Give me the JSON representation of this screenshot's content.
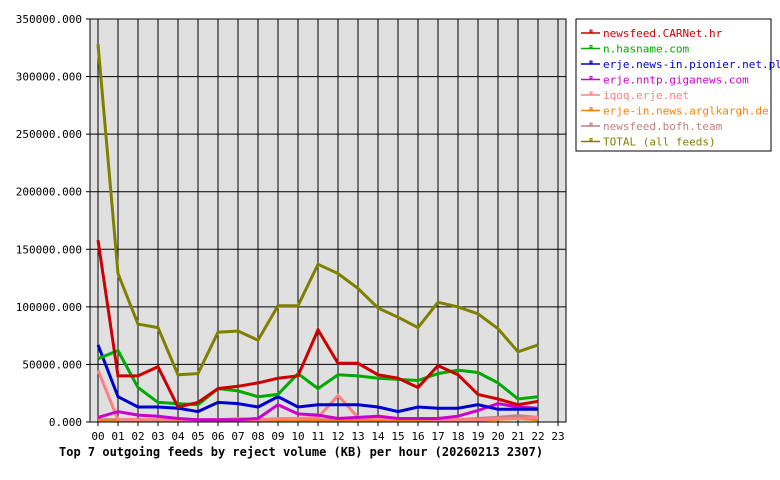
{
  "chart_data": {
    "type": "line",
    "title": "Top 7 outgoing feeds by reject volume (KB) per hour (20260213 2307)",
    "xlabel": "",
    "ylabel": "",
    "ylim": [
      0,
      350000
    ],
    "yticks": [
      "0.000",
      "50000.000",
      "100000.000",
      "150000.000",
      "200000.000",
      "250000.000",
      "300000.000",
      "350000.000"
    ],
    "categories": [
      "00",
      "01",
      "02",
      "03",
      "04",
      "05",
      "06",
      "07",
      "08",
      "09",
      "10",
      "11",
      "12",
      "13",
      "14",
      "15",
      "16",
      "17",
      "18",
      "19",
      "20",
      "21",
      "22",
      "23"
    ],
    "grid": true,
    "legend_position": "right",
    "series": [
      {
        "name": "newsfeed.CARNet.hr",
        "color": "#cc0000",
        "values": [
          158000,
          40000,
          40000,
          48000,
          13000,
          17000,
          29000,
          31000,
          34000,
          38000,
          40000,
          80000,
          51000,
          51000,
          41000,
          38000,
          30000,
          49000,
          41000,
          24000,
          20000,
          15000,
          18000
        ]
      },
      {
        "name": "n.hasname.com",
        "color": "#00aa00",
        "values": [
          55000,
          62000,
          30000,
          17000,
          16000,
          15000,
          29000,
          27000,
          22000,
          24000,
          42000,
          29000,
          41000,
          40000,
          38000,
          37000,
          36000,
          42000,
          45000,
          43000,
          34000,
          20000,
          22000
        ]
      },
      {
        "name": "erje.news-in.pionier.net.pl",
        "color": "#0000cc",
        "values": [
          67000,
          22000,
          13000,
          13000,
          12000,
          9000,
          17000,
          16000,
          13000,
          22000,
          13000,
          15000,
          15000,
          15000,
          13000,
          9000,
          13000,
          12000,
          12000,
          15000,
          11000,
          11000,
          11000
        ]
      },
      {
        "name": "erje.nntp.giganews.com",
        "color": "#cc00cc",
        "values": [
          4000,
          9000,
          6000,
          5000,
          3000,
          2000,
          2000,
          2000,
          3000,
          15000,
          7000,
          6000,
          3000,
          4000,
          5000,
          3000,
          3000,
          3000,
          5000,
          10000,
          16000,
          13000,
          12000
        ]
      },
      {
        "name": "iqoq.erje.net",
        "color": "#ff8080",
        "values": [
          45000,
          2000,
          2000,
          2000,
          2000,
          1500,
          2000,
          3000,
          2000,
          3000,
          3000,
          4000,
          23000,
          4000,
          3000,
          3000,
          3000,
          2000,
          2000,
          2000,
          3000,
          3000,
          4000
        ]
      },
      {
        "name": "erje-in.news.arglkargh.de",
        "color": "#ff8000",
        "values": [
          1000,
          1000,
          1000,
          1000,
          1000,
          1000,
          1500,
          1500,
          1500,
          1500,
          1500,
          1500,
          1000,
          1000,
          1500,
          1500,
          1000,
          1000,
          1000,
          1500,
          2500,
          3000,
          2000
        ]
      },
      {
        "name": "newsfeed.bofh.team",
        "color": "#c08080",
        "values": [
          2000,
          2000,
          2000,
          2000,
          2000,
          2000,
          2000,
          2000,
          2000,
          2000,
          2000,
          2000,
          2000,
          2000,
          2000,
          2000,
          2000,
          2000,
          2000,
          3000,
          4000,
          5500,
          4000
        ]
      },
      {
        "name": "TOTAL (all feeds)",
        "color": "#808000",
        "values": [
          328000,
          129000,
          85000,
          82000,
          41000,
          42000,
          78000,
          79000,
          71000,
          101000,
          101000,
          137000,
          129000,
          116000,
          99000,
          91000,
          82000,
          104000,
          100000,
          94000,
          81000,
          61000,
          67000
        ]
      }
    ]
  }
}
